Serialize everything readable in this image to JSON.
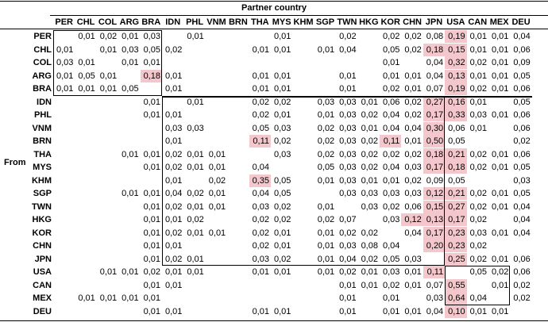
{
  "title": "Partner country",
  "row_axis_label": "From",
  "columns": [
    "PER",
    "CHL",
    "COL",
    "ARG",
    "BRA",
    "IDN",
    "PHL",
    "VNM",
    "BRN",
    "THA",
    "MYS",
    "KHM",
    "SGP",
    "TWN",
    "HKG",
    "KOR",
    "CHN",
    "JPN",
    "USA",
    "CAN",
    "MEX",
    "DEU"
  ],
  "rows": [
    {
      "label": "PER",
      "cells": [
        "",
        "0,01",
        "0,02",
        "0,01",
        "0,03",
        "",
        "0,01",
        "",
        "",
        "",
        "0,01",
        "",
        "",
        "0,02",
        "",
        "0,02",
        "0,02",
        "0,08",
        "0,19",
        "0,01",
        "0,01",
        "0,04"
      ]
    },
    {
      "label": "CHL",
      "cells": [
        "0,01",
        "",
        "0,01",
        "0,03",
        "0,05",
        "0,02",
        "",
        "",
        "",
        "0,01",
        "0,01",
        "",
        "0,01",
        "0,04",
        "",
        "0,05",
        "0,02",
        "0,18",
        "0,15",
        "0,01",
        "0,01",
        "0,06"
      ]
    },
    {
      "label": "COL",
      "cells": [
        "0,03",
        "0,01",
        "",
        "0,01",
        "0,01",
        "",
        "",
        "",
        "",
        "",
        "",
        "",
        "",
        "",
        "",
        "0,01",
        "",
        "0,04",
        "0,32",
        "0,02",
        "0,01",
        "0,09"
      ]
    },
    {
      "label": "ARG",
      "cells": [
        "0,01",
        "0,05",
        "0,01",
        "",
        "0,18",
        "0,01",
        "",
        "",
        "",
        "0,01",
        "0,01",
        "",
        "",
        "0,01",
        "",
        "0,01",
        "0,01",
        "0,04",
        "0,13",
        "0,01",
        "0,01",
        "0,05"
      ]
    },
    {
      "label": "BRA",
      "cells": [
        "0,01",
        "0,01",
        "0,01",
        "0,05",
        "",
        "0,01",
        "",
        "",
        "",
        "0,01",
        "0,01",
        "",
        "",
        "0,01",
        "",
        "0,02",
        "0,01",
        "0,07",
        "0,19",
        "0,02",
        "0,01",
        "0,06"
      ]
    },
    {
      "label": "IDN",
      "cells": [
        "",
        "",
        "",
        "",
        "0,01",
        "",
        "0,01",
        "",
        "",
        "0,02",
        "0,02",
        "",
        "0,03",
        "0,03",
        "0,01",
        "0,06",
        "0,02",
        "0,27",
        "0,16",
        "0,01",
        "",
        "0,05"
      ]
    },
    {
      "label": "PHL",
      "cells": [
        "",
        "",
        "",
        "",
        "0,01",
        "0,01",
        "",
        "",
        "",
        "0,02",
        "0,01",
        "",
        "0,01",
        "0,03",
        "0,02",
        "0,04",
        "0,02",
        "0,17",
        "0,33",
        "0,03",
        "0,01",
        "0,06"
      ]
    },
    {
      "label": "VNM",
      "cells": [
        "",
        "",
        "",
        "",
        "",
        "0,03",
        "0,03",
        "",
        "",
        "0,05",
        "0,03",
        "",
        "0,02",
        "0,03",
        "0,01",
        "0,04",
        "0,04",
        "0,30",
        "0,06",
        "0,01",
        "",
        "0,06"
      ]
    },
    {
      "label": "BRN",
      "cells": [
        "",
        "",
        "",
        "",
        "",
        "0,01",
        "",
        "",
        "",
        "0,11",
        "0,02",
        "",
        "0,02",
        "0,03",
        "0,02",
        "0,11",
        "0,01",
        "0,50",
        "0,05",
        "",
        "",
        "0,02"
      ]
    },
    {
      "label": "THA",
      "cells": [
        "",
        "",
        "",
        "0,01",
        "0,01",
        "0,02",
        "0,01",
        "0,01",
        "",
        "",
        "0,03",
        "",
        "0,02",
        "0,03",
        "0,02",
        "0,02",
        "0,02",
        "0,18",
        "0,21",
        "0,02",
        "0,01",
        "0,06"
      ]
    },
    {
      "label": "MYS",
      "cells": [
        "",
        "",
        "",
        "",
        "0,01",
        "0,02",
        "0,01",
        "0,01",
        "",
        "0,04",
        "",
        "",
        "0,05",
        "0,03",
        "0,02",
        "0,04",
        "0,03",
        "0,17",
        "0,18",
        "0,02",
        "0,01",
        "0,05"
      ]
    },
    {
      "label": "KHM",
      "cells": [
        "",
        "",
        "",
        "",
        "",
        "0,01",
        "",
        "0,02",
        "",
        "0,35",
        "0,05",
        "",
        "0,01",
        "0,03",
        "0,01",
        "0,01",
        "0,02",
        "0,09",
        "0,05",
        "",
        "",
        "0,03"
      ]
    },
    {
      "label": "SGP",
      "cells": [
        "",
        "",
        "",
        "0,01",
        "0,01",
        "0,04",
        "0,02",
        "0,01",
        "",
        "0,04",
        "0,05",
        "",
        "",
        "0,03",
        "0,03",
        "0,03",
        "0,03",
        "0,12",
        "0,21",
        "0,02",
        "0,01",
        "0,05"
      ]
    },
    {
      "label": "TWN",
      "cells": [
        "",
        "",
        "",
        "",
        "0,01",
        "0,02",
        "0,01",
        "0,01",
        "",
        "0,03",
        "0,02",
        "",
        "0,01",
        "",
        "0,03",
        "0,02",
        "0,06",
        "0,15",
        "0,27",
        "0,02",
        "0,01",
        "0,04"
      ]
    },
    {
      "label": "HKG",
      "cells": [
        "",
        "",
        "",
        "",
        "0,01",
        "0,01",
        "0,02",
        "",
        "",
        "0,02",
        "0,02",
        "",
        "0,02",
        "0,07",
        "",
        "0,03",
        "0,12",
        "0,13",
        "0,17",
        "0,02",
        "",
        "0,04"
      ]
    },
    {
      "label": "KOR",
      "cells": [
        "",
        "",
        "",
        "",
        "0,01",
        "0,02",
        "0,01",
        "0,01",
        "",
        "0,02",
        "0,01",
        "",
        "0,01",
        "0,02",
        "0,02",
        "",
        "0,04",
        "0,17",
        "0,23",
        "0,03",
        "0,01",
        "0,04"
      ]
    },
    {
      "label": "CHN",
      "cells": [
        "",
        "",
        "",
        "",
        "0,01",
        "0,01",
        "",
        "",
        "",
        "0,02",
        "0,01",
        "",
        "0,01",
        "0,03",
        "0,08",
        "0,04",
        "",
        "0,20",
        "0,23",
        "0,02",
        "",
        ""
      ]
    },
    {
      "label": "JPN",
      "cells": [
        "",
        "",
        "",
        "",
        "0,01",
        "0,02",
        "0,01",
        "",
        "",
        "0,03",
        "0,02",
        "",
        "0,01",
        "0,04",
        "0,02",
        "0,05",
        "0,03",
        "",
        "0,25",
        "0,02",
        "0,01",
        "0,06"
      ]
    },
    {
      "label": "USA",
      "cells": [
        "",
        "",
        "0,01",
        "0,01",
        "0,02",
        "0,01",
        "0,01",
        "",
        "",
        "0,01",
        "0,01",
        "",
        "0,01",
        "0,02",
        "0,01",
        "0,03",
        "0,01",
        "0,11",
        "",
        "0,05",
        "0,02",
        "0,06"
      ]
    },
    {
      "label": "CAN",
      "cells": [
        "",
        "",
        "",
        "",
        "0,01",
        "0,01",
        "",
        "",
        "",
        "",
        "",
        "",
        "",
        "0,01",
        "0,01",
        "0,02",
        "0,01",
        "0,07",
        "0,55",
        "",
        "0,01",
        "0,02"
      ]
    },
    {
      "label": "MEX",
      "cells": [
        "",
        "0,01",
        "0,01",
        "0,01",
        "0,01",
        "",
        "",
        "",
        "",
        "",
        "",
        "",
        "",
        "0,01",
        "",
        "0,01",
        "",
        "0,03",
        "0,64",
        "0,04",
        "",
        "0,02"
      ]
    },
    {
      "label": "DEU",
      "cells": [
        "",
        "",
        "",
        "",
        "0,01",
        "0,01",
        "",
        "",
        "",
        "0,01",
        "0,01",
        "",
        "",
        "0,01",
        "",
        "0,01",
        "0,01",
        "0,04",
        "0,10",
        "0,01",
        "0,01",
        ""
      ]
    }
  ],
  "highlighted": [
    [
      0,
      18
    ],
    [
      1,
      17
    ],
    [
      1,
      18
    ],
    [
      2,
      18
    ],
    [
      3,
      4
    ],
    [
      3,
      18
    ],
    [
      4,
      18
    ],
    [
      5,
      17
    ],
    [
      5,
      18
    ],
    [
      6,
      17
    ],
    [
      6,
      18
    ],
    [
      7,
      17
    ],
    [
      8,
      9
    ],
    [
      8,
      15
    ],
    [
      8,
      17
    ],
    [
      9,
      17
    ],
    [
      9,
      18
    ],
    [
      10,
      17
    ],
    [
      10,
      18
    ],
    [
      11,
      9
    ],
    [
      12,
      17
    ],
    [
      12,
      18
    ],
    [
      13,
      17
    ],
    [
      13,
      18
    ],
    [
      14,
      16
    ],
    [
      14,
      17
    ],
    [
      14,
      18
    ],
    [
      15,
      17
    ],
    [
      15,
      18
    ],
    [
      16,
      17
    ],
    [
      16,
      18
    ],
    [
      17,
      18
    ],
    [
      18,
      17
    ],
    [
      19,
      18
    ],
    [
      20,
      18
    ],
    [
      21,
      18
    ]
  ],
  "colors": {
    "highlight": "#f4c7cc",
    "text": "#000000",
    "grid": "#000000"
  }
}
